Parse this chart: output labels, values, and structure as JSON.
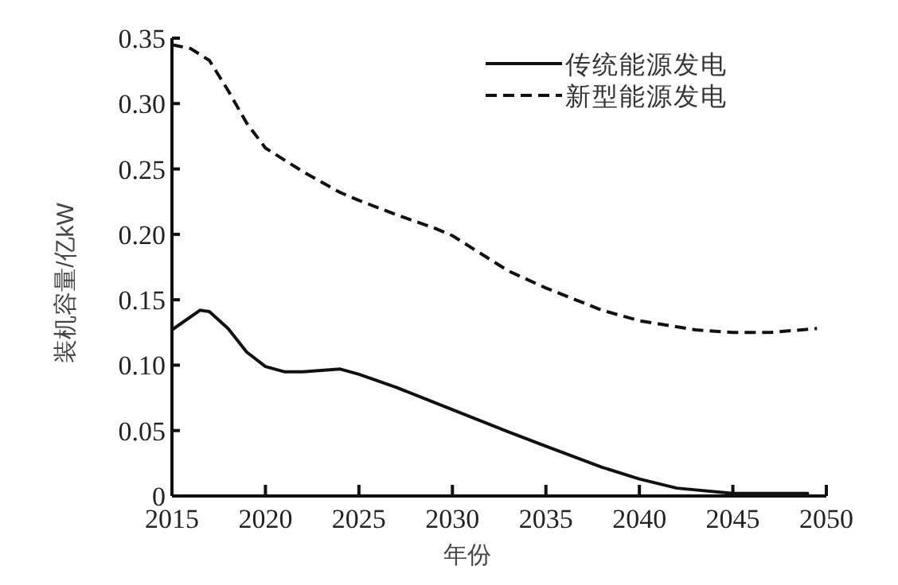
{
  "chart_data": {
    "type": "line",
    "xlabel": "年份",
    "ylabel": "装机容量/亿kW",
    "xlim": [
      2015,
      2050
    ],
    "ylim": [
      0,
      0.35
    ],
    "xticks": [
      2015,
      2020,
      2025,
      2030,
      2035,
      2040,
      2045,
      2050
    ],
    "yticks": [
      0,
      {
        "value": 0.05,
        "label": "0.05"
      },
      {
        "value": 0.1,
        "label": "0.10"
      },
      {
        "value": 0.15,
        "label": "0.15"
      },
      {
        "value": 0.2,
        "label": "0.20"
      },
      {
        "value": 0.25,
        "label": "0.25"
      },
      {
        "value": 0.3,
        "label": "0.30"
      },
      {
        "value": 0.35,
        "label": "0.35"
      }
    ],
    "grid": false,
    "legend": "top right",
    "marker": "none",
    "series": [
      {
        "name": "传统能源发电",
        "color": "#111111",
        "line_style": "solid",
        "x": [
          2015,
          2016.5,
          2017,
          2018,
          2019,
          2020,
          2021,
          2022,
          2024,
          2025,
          2027,
          2030,
          2033,
          2035,
          2038,
          2040,
          2042,
          2045,
          2049
        ],
        "values": [
          0.127,
          0.142,
          0.141,
          0.128,
          0.11,
          0.099,
          0.095,
          0.095,
          0.097,
          0.093,
          0.083,
          0.066,
          0.049,
          0.038,
          0.022,
          0.013,
          0.006,
          0.002,
          0.002
        ]
      },
      {
        "name": "新型能源发电",
        "color": "#111111",
        "line_style": "dashed",
        "x": [
          2015,
          2016,
          2017,
          2018,
          2019,
          2020,
          2022,
          2024,
          2025,
          2027,
          2029,
          2030,
          2031,
          2033,
          2035,
          2038,
          2040,
          2043,
          2045,
          2047,
          2049.5
        ],
        "values": [
          0.345,
          0.342,
          0.333,
          0.31,
          0.285,
          0.266,
          0.248,
          0.232,
          0.226,
          0.215,
          0.205,
          0.199,
          0.19,
          0.172,
          0.159,
          0.142,
          0.134,
          0.127,
          0.125,
          0.125,
          0.128
        ]
      }
    ]
  }
}
